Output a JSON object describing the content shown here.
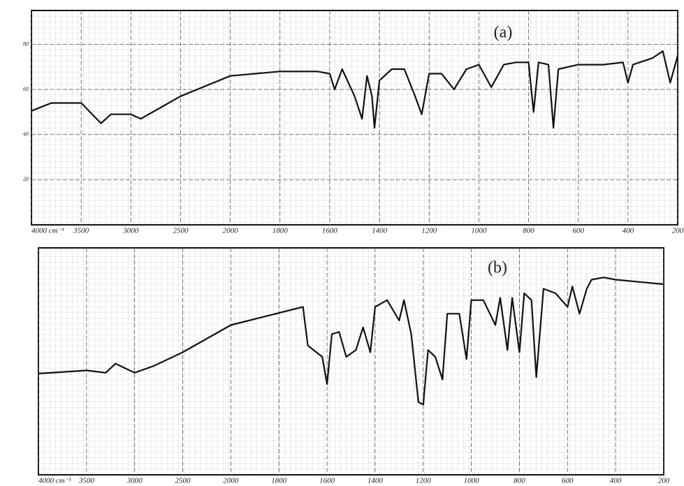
{
  "chart_data": [
    {
      "type": "line",
      "annotation": "(a)",
      "color": "#111111",
      "grid": true,
      "x": [
        4000,
        3800,
        3500,
        3300,
        3200,
        3000,
        2900,
        2700,
        2500,
        2000,
        1800,
        1650,
        1600,
        1580,
        1550,
        1500,
        1470,
        1450,
        1430,
        1420,
        1400,
        1350,
        1300,
        1260,
        1230,
        1200,
        1150,
        1100,
        1050,
        1000,
        950,
        900,
        850,
        800,
        780,
        760,
        720,
        700,
        680,
        600,
        500,
        420,
        400,
        380,
        300,
        260,
        230,
        200
      ],
      "values": [
        50.5,
        54,
        54,
        45,
        49,
        49,
        47,
        52,
        57,
        66,
        68,
        68,
        67,
        60,
        69,
        57,
        47,
        66,
        57,
        43,
        64,
        69,
        69,
        58,
        49,
        67,
        67,
        60,
        69,
        71,
        61,
        71,
        72,
        72,
        50,
        72,
        71,
        43,
        69,
        71,
        71,
        72,
        63,
        71,
        74,
        77,
        63,
        75
      ],
      "xlim": [
        4000,
        200
      ],
      "xticks": [
        {
          "value": 4000,
          "label": "4000 cm⁻¹"
        },
        3500,
        3000,
        2500,
        2000,
        1800,
        1600,
        1400,
        1200,
        1000,
        800,
        600,
        400,
        200
      ],
      "ylim": [
        0,
        95
      ],
      "yticks": [
        20,
        40,
        60,
        80
      ]
    },
    {
      "type": "line",
      "annotation": "(b)",
      "color": "#111111",
      "grid": true,
      "x": [
        4000,
        3500,
        3300,
        3200,
        3000,
        2800,
        2500,
        2000,
        1700,
        1680,
        1620,
        1600,
        1580,
        1550,
        1520,
        1480,
        1450,
        1420,
        1400,
        1350,
        1300,
        1280,
        1250,
        1220,
        1200,
        1180,
        1150,
        1120,
        1100,
        1050,
        1020,
        1000,
        950,
        900,
        880,
        850,
        830,
        800,
        780,
        750,
        730,
        700,
        650,
        600,
        580,
        550,
        520,
        500,
        450,
        400,
        300,
        200
      ],
      "values": [
        44.6,
        46,
        45,
        49,
        45,
        48,
        54,
        66,
        74,
        57,
        52,
        40,
        62,
        63,
        52,
        55,
        65,
        54,
        74,
        77,
        68,
        77,
        62,
        32,
        31,
        55,
        52,
        42,
        71,
        71,
        51,
        77,
        77,
        66,
        78,
        55,
        78,
        54,
        80,
        77,
        43,
        82,
        80,
        74,
        83,
        71,
        82,
        86,
        87,
        86,
        85,
        84
      ],
      "xlim": [
        4000,
        200
      ],
      "xticks": [
        {
          "value": 4000,
          "label": "4000 cm⁻¹"
        },
        3500,
        3000,
        2500,
        2000,
        1800,
        1600,
        1400,
        1200,
        1000,
        800,
        600,
        400,
        200
      ],
      "ylim": [
        0,
        100
      ]
    }
  ]
}
